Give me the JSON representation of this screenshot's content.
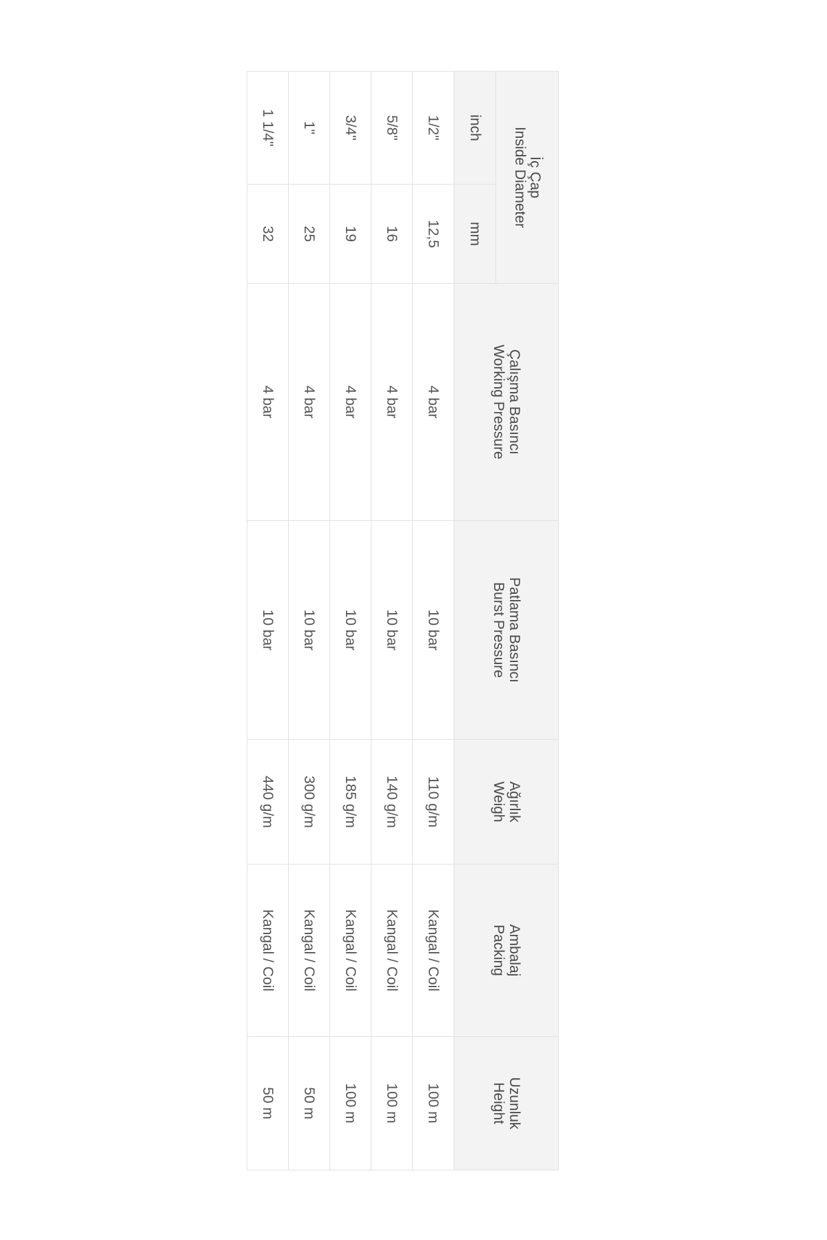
{
  "table": {
    "headers": {
      "inside_diameter": {
        "tr": "İç Çap",
        "en": "Inside Diameter"
      },
      "inch": "inch",
      "mm": "mm",
      "working_pressure": {
        "tr": "Çalışma Basıncı",
        "en": "Working Pressure"
      },
      "burst_pressure": {
        "tr": "Patlama Basıncı",
        "en": "Burst Pressure"
      },
      "weigh": {
        "tr": "Ağırlık",
        "en": "Weigh"
      },
      "packing": {
        "tr": "Ambalaj",
        "en": "Packing"
      },
      "height": {
        "tr": "Uzunluk",
        "en": "Height"
      }
    },
    "rows": [
      {
        "inch": "1/2\"",
        "mm": "12,5",
        "working": "4 bar",
        "burst": "10 bar",
        "weigh": "110 g/m",
        "packing": "Kangal / Coil",
        "height": "100 m"
      },
      {
        "inch": "5/8\"",
        "mm": "16",
        "working": "4 bar",
        "burst": "10 bar",
        "weigh": "140 g/m",
        "packing": "Kangal / Coil",
        "height": "100 m"
      },
      {
        "inch": "3/4\"",
        "mm": "19",
        "working": "4 bar",
        "burst": "10 bar",
        "weigh": "185 g/m",
        "packing": "Kangal / Coil",
        "height": "100 m"
      },
      {
        "inch": "1\"",
        "mm": "25",
        "working": "4 bar",
        "burst": "10 bar",
        "weigh": "300 g/m",
        "packing": "Kangal / Coil",
        "height": "50 m"
      },
      {
        "inch": "1 1/4\"",
        "mm": "32",
        "working": "4 bar",
        "burst": "10 bar",
        "weigh": "440 g/m",
        "packing": "Kangal / Coil",
        "height": "50 m"
      }
    ]
  }
}
